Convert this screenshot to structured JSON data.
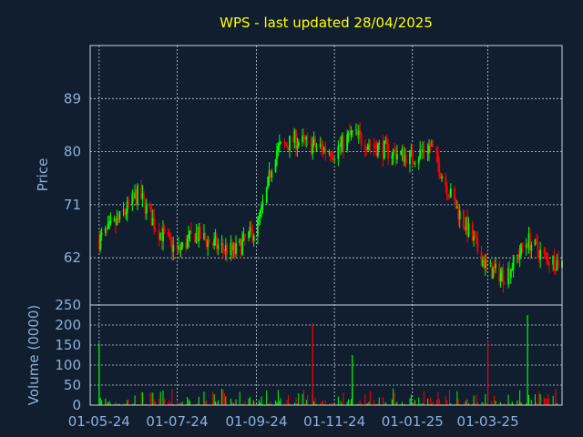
{
  "chart_data": {
    "type": "candlestick",
    "title": "WPS - last updated 28/04/2025",
    "colors": {
      "background": "#111e30",
      "up": "#00ff00",
      "down": "#ff0000",
      "title": "#ffff00",
      "axis_text": "#8fb0d8",
      "grid": "#c8d4e0"
    },
    "x_ticks": [
      "01-05-24",
      "01-07-24",
      "01-09-24",
      "01-11-24",
      "01-01-25",
      "01-03-25"
    ],
    "x_range": [
      "2024-04-24",
      "2025-04-28"
    ],
    "price_panel": {
      "ylabel": "Price",
      "ylim": [
        54,
        98
      ],
      "y_ticks": [
        62,
        71,
        80,
        89
      ],
      "series": [
        {
          "date": "2024-05-01",
          "close": 65
        },
        {
          "date": "2024-05-15",
          "close": 68
        },
        {
          "date": "2024-06-01",
          "close": 73
        },
        {
          "date": "2024-06-15",
          "close": 67
        },
        {
          "date": "2024-07-01",
          "close": 63
        },
        {
          "date": "2024-07-15",
          "close": 66
        },
        {
          "date": "2024-08-01",
          "close": 64
        },
        {
          "date": "2024-08-15",
          "close": 63
        },
        {
          "date": "2024-09-01",
          "close": 67
        },
        {
          "date": "2024-09-08",
          "close": 72
        },
        {
          "date": "2024-09-15",
          "close": 80
        },
        {
          "date": "2024-10-01",
          "close": 82
        },
        {
          "date": "2024-10-15",
          "close": 81
        },
        {
          "date": "2024-11-01",
          "close": 80
        },
        {
          "date": "2024-11-15",
          "close": 83
        },
        {
          "date": "2024-12-01",
          "close": 81
        },
        {
          "date": "2024-12-15",
          "close": 80
        },
        {
          "date": "2025-01-01",
          "close": 79
        },
        {
          "date": "2025-01-15",
          "close": 81
        },
        {
          "date": "2025-02-01",
          "close": 72
        },
        {
          "date": "2025-02-15",
          "close": 66
        },
        {
          "date": "2025-03-01",
          "close": 60
        },
        {
          "date": "2025-03-15",
          "close": 59
        },
        {
          "date": "2025-04-01",
          "close": 65
        },
        {
          "date": "2025-04-15",
          "close": 62
        },
        {
          "date": "2025-04-28",
          "close": 61
        }
      ]
    },
    "volume_panel": {
      "ylabel": "Volume (0000)",
      "ylim": [
        0,
        250
      ],
      "y_ticks": [
        0,
        50,
        100,
        150,
        200,
        250
      ],
      "notable_bars": [
        {
          "date": "2024-05-01",
          "value": 155
        },
        {
          "date": "2024-10-15",
          "value": 205
        },
        {
          "date": "2024-11-15",
          "value": 125
        },
        {
          "date": "2025-03-01",
          "value": 160
        },
        {
          "date": "2025-04-01",
          "value": 225
        }
      ]
    }
  }
}
